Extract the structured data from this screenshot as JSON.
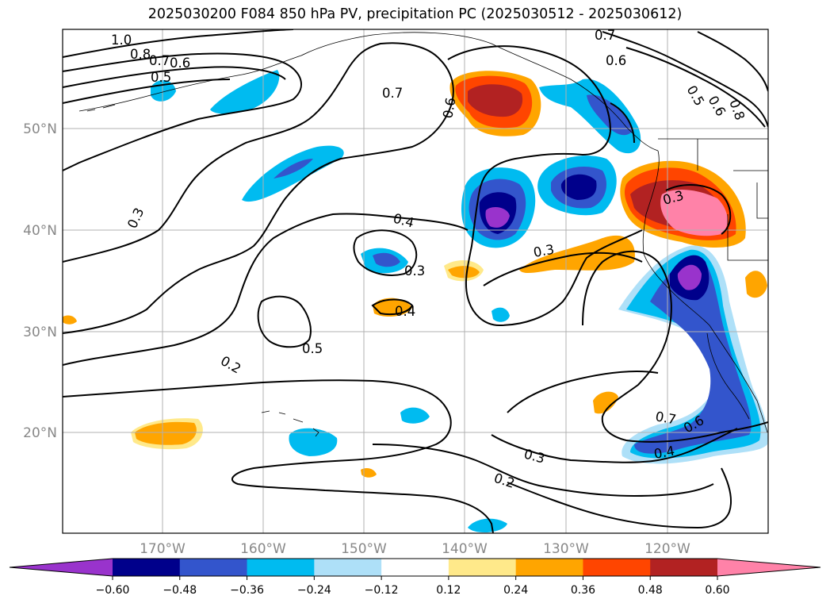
{
  "title": "2025030200 F084 850 hPa PV, precipitation PC (2025030512 - 2025030612)",
  "map": {
    "lat_labels": [
      "50°N",
      "40°N",
      "30°N",
      "20°N"
    ],
    "lon_labels": [
      "170°W",
      "160°W",
      "150°W",
      "140°W",
      "130°W",
      "120°W"
    ],
    "contour_labels": [
      "1.0",
      "0.8",
      "0.7",
      "0.6",
      "0.5",
      "0.7",
      "0.6",
      "0.7",
      "0.6",
      "0.5",
      "0.6",
      "0.8",
      "0.3",
      "0.4",
      "0.3",
      "0.3",
      "0.4",
      "0.5",
      "0.2",
      "0.7",
      "0.6",
      "0.4",
      "0.3",
      "0.2",
      "0.3"
    ]
  },
  "colorbar": {
    "ticks": [
      "−0.60",
      "−0.48",
      "−0.36",
      "−0.24",
      "−0.12",
      "0.12",
      "0.24",
      "0.36",
      "0.48",
      "0.60"
    ],
    "colors": [
      "#9933cc",
      "#00008b",
      "#3355cc",
      "#00bbf0",
      "#aee0f8",
      "#ffffff",
      "#ffe98a",
      "#ffa500",
      "#ff4500",
      "#b22222",
      "#ff82a8"
    ]
  }
}
